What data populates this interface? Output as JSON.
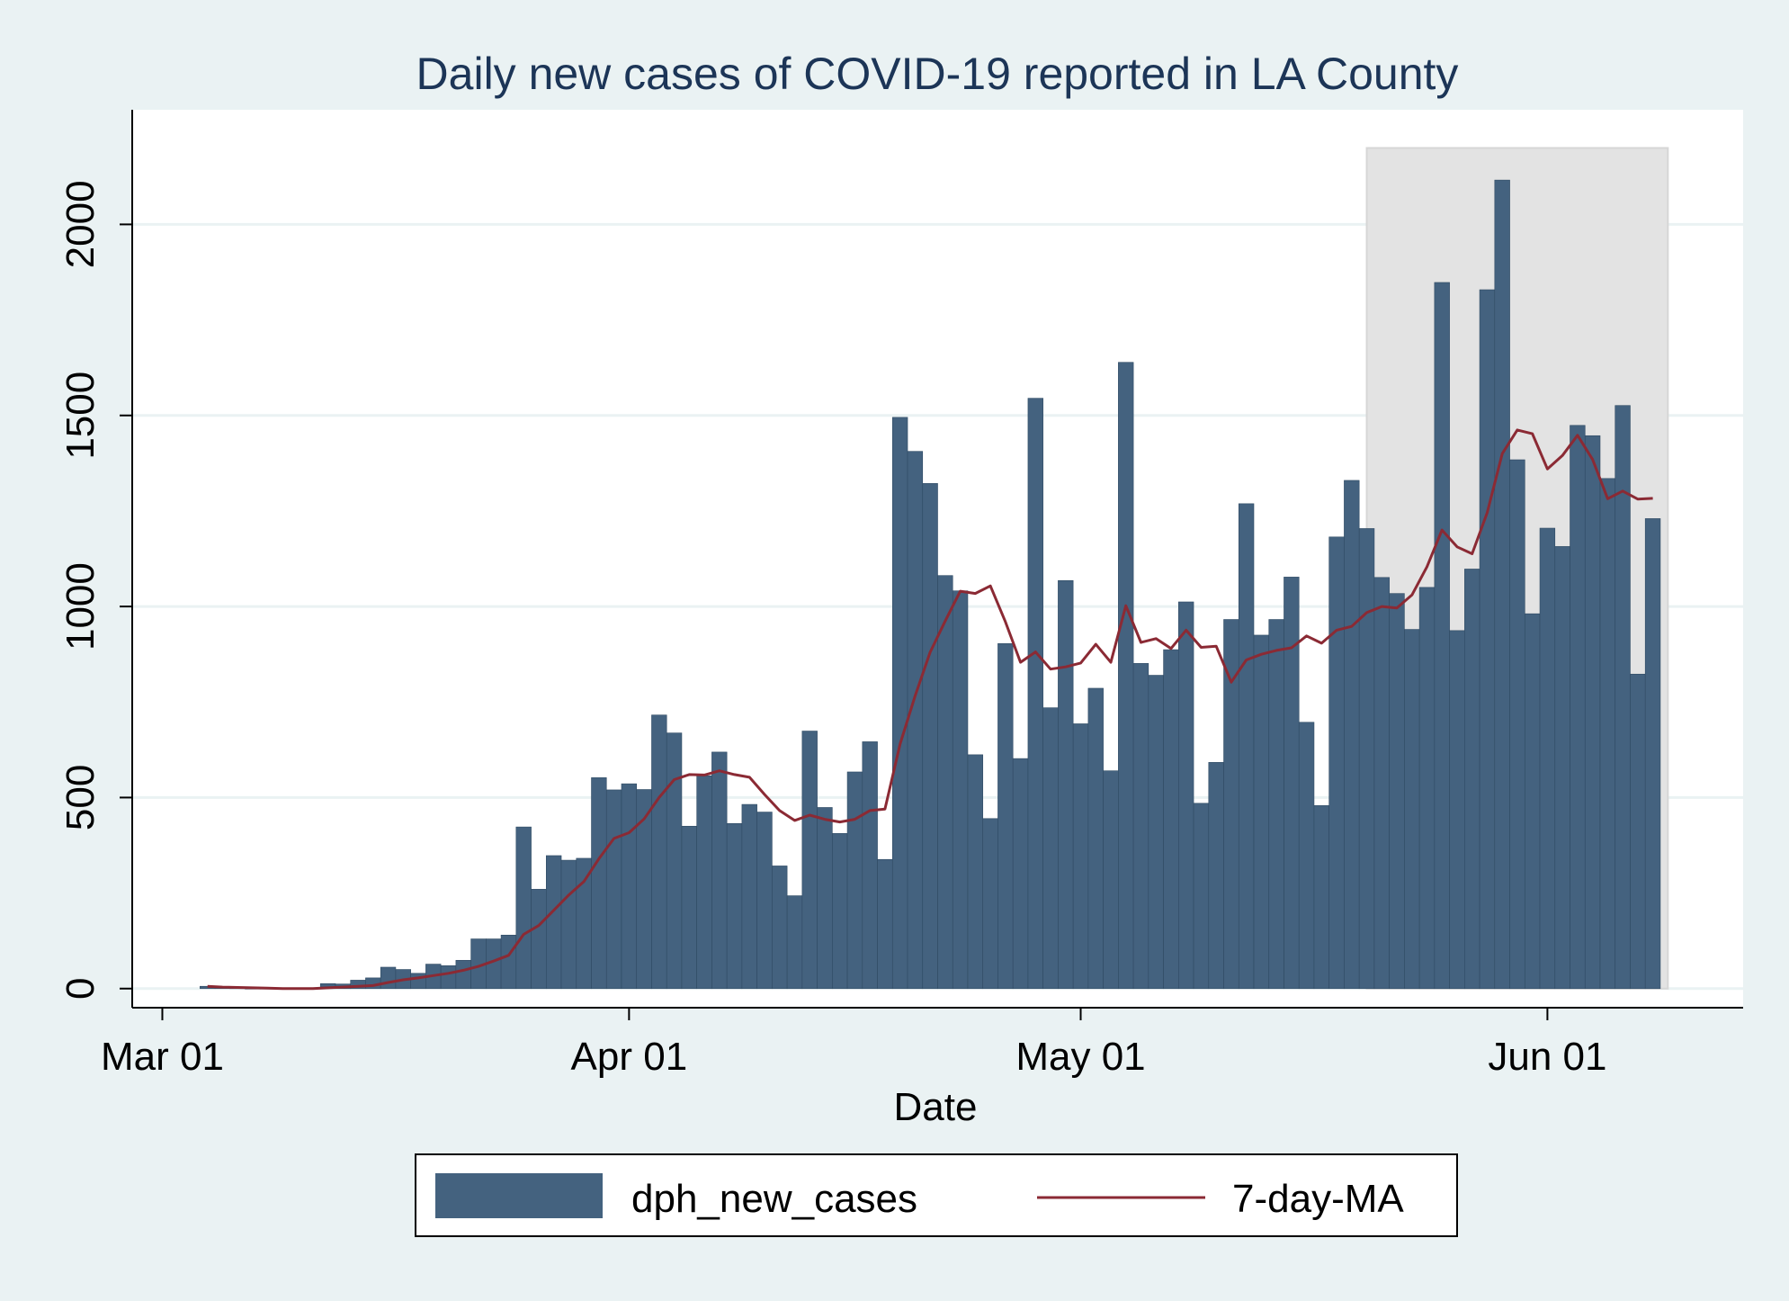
{
  "chart_data": {
    "type": "bar",
    "title": "Daily new cases of COVID-19 reported in LA County",
    "xlabel": "Date",
    "ylabel": "",
    "ylim": [
      -50,
      2300
    ],
    "xlim": [
      "2020-02-28",
      "2020-06-14"
    ],
    "grid": true,
    "legend_position": "bottom",
    "x_ticks": [
      {
        "date": "2020-03-01",
        "label": "Mar 01"
      },
      {
        "date": "2020-04-01",
        "label": "Apr 01"
      },
      {
        "date": "2020-05-01",
        "label": "May 01"
      },
      {
        "date": "2020-06-01",
        "label": "Jun 01"
      }
    ],
    "y_ticks": [
      0,
      500,
      1000,
      1500,
      2000
    ],
    "shaded_region": {
      "x_start": "2020-05-20",
      "x_end": "2020-06-09",
      "y_top": 2200,
      "color": "#e3e3e3"
    },
    "x_start_date": "2020-03-04",
    "series": [
      {
        "name": "dph_new_cases",
        "kind": "bar",
        "color": "#44627f",
        "values": [
          6,
          2,
          1,
          0,
          0,
          0,
          0,
          1,
          13,
          12,
          22,
          28,
          56,
          50,
          40,
          64,
          60,
          74,
          130,
          130,
          140,
          423,
          260,
          348,
          336,
          341,
          552,
          520,
          536,
          521,
          716,
          669,
          425,
          557,
          619,
          432,
          482,
          462,
          321,
          243,
          674,
          474,
          406,
          567,
          646,
          338,
          1495,
          1406,
          1322,
          1081,
          1041,
          612,
          445,
          903,
          602,
          1545,
          735,
          1068,
          693,
          786,
          570,
          1639,
          851,
          820,
          887,
          1012,
          485,
          592,
          966,
          1269,
          925,
          966,
          1077,
          697,
          479,
          1182,
          1330,
          1204,
          1076,
          1034,
          940,
          1050,
          1848,
          937,
          1098,
          1829,
          2116,
          1384,
          981,
          1205,
          1157,
          1474,
          1447,
          1335,
          1526,
          823,
          1230
        ]
      },
      {
        "name": "7-day-MA",
        "kind": "line",
        "color": "#8b2a34",
        "values": [
          6,
          4,
          3,
          2,
          1,
          0,
          0,
          0,
          2,
          4,
          6,
          8,
          16,
          23,
          28,
          34,
          40,
          48,
          58,
          72,
          87,
          142,
          165,
          205,
          245,
          280,
          340,
          393,
          408,
          444,
          500,
          547,
          560,
          559,
          570,
          560,
          553,
          508,
          466,
          440,
          454,
          443,
          436,
          443,
          466,
          470,
          640,
          766,
          880,
          962,
          1040,
          1034,
          1054,
          960,
          854,
          881,
          836,
          842,
          852,
          901,
          854,
          1002,
          906,
          916,
          890,
          938,
          893,
          896,
          802,
          860,
          875,
          885,
          892,
          923,
          904,
          938,
          948,
          984,
          1000,
          996,
          1030,
          1104,
          1200,
          1156,
          1138,
          1245,
          1400,
          1462,
          1452,
          1360,
          1395,
          1448,
          1385,
          1282,
          1302,
          1281,
          1283
        ]
      }
    ]
  }
}
